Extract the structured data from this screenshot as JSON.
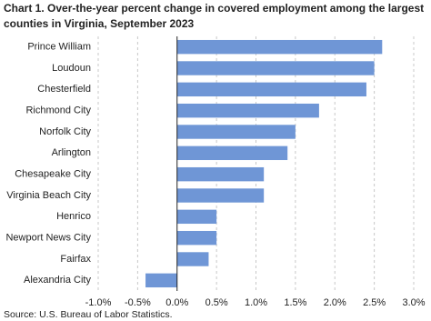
{
  "chart_data": {
    "type": "hbar",
    "title": [
      "Chart 1. Over-the-year percent change in covered employment among the largest",
      "counties in Virginia, September 2023"
    ],
    "categories": [
      "Prince William",
      "Loudoun",
      "Chesterfield",
      "Richmond City",
      "Norfolk City",
      "Arlington",
      "Chesapeake City",
      "Virginia Beach City",
      "Henrico",
      "Newport News City",
      "Fairfax",
      "Alexandria City"
    ],
    "values": [
      2.6,
      2.5,
      2.4,
      1.8,
      1.5,
      1.4,
      1.1,
      1.1,
      0.5,
      0.5,
      0.4,
      -0.4
    ],
    "color": "#6f96d6",
    "xlim": [
      -1.0,
      3.0
    ],
    "xticks": [
      {
        "value": -1.0,
        "label": "-1.0%"
      },
      {
        "value": -0.5,
        "label": "-0.5%"
      },
      {
        "value": 0,
        "label": "0.0%"
      },
      {
        "value": 0.5,
        "label": "0.5%"
      },
      {
        "value": 1.0,
        "label": "1.0%"
      },
      {
        "value": 1.5,
        "label": "1.5%"
      },
      {
        "value": 2.0,
        "label": "2.0%"
      },
      {
        "value": 2.5,
        "label": "2.5%"
      },
      {
        "value": 3.0,
        "label": "3.0%"
      }
    ],
    "grid": true,
    "source": "Source: U.S. Bureau of Labor Statistics."
  }
}
